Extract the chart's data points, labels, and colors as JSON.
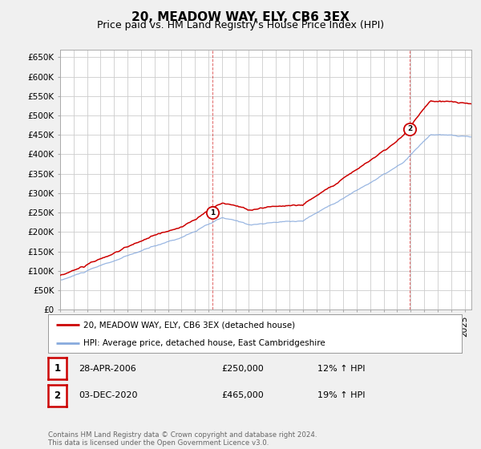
{
  "title": "20, MEADOW WAY, ELY, CB6 3EX",
  "subtitle": "Price paid vs. HM Land Registry's House Price Index (HPI)",
  "ylabel_ticks": [
    "£0",
    "£50K",
    "£100K",
    "£150K",
    "£200K",
    "£250K",
    "£300K",
    "£350K",
    "£400K",
    "£450K",
    "£500K",
    "£550K",
    "£600K",
    "£650K"
  ],
  "ytick_vals": [
    0,
    50000,
    100000,
    150000,
    200000,
    250000,
    300000,
    350000,
    400000,
    450000,
    500000,
    550000,
    600000,
    650000
  ],
  "ylim": [
    0,
    670000
  ],
  "xlim_start": 1995.0,
  "xlim_end": 2025.5,
  "marker1_x": 2006.32,
  "marker1_y": 250000,
  "marker1_label": "1",
  "marker2_x": 2020.92,
  "marker2_y": 465000,
  "marker2_label": "2",
  "legend_line1_color": "#cc0000",
  "legend_line1_label": "20, MEADOW WAY, ELY, CB6 3EX (detached house)",
  "legend_line2_color": "#88aadd",
  "legend_line2_label": "HPI: Average price, detached house, East Cambridgeshire",
  "annotation1_num": "1",
  "annotation1_date": "28-APR-2006",
  "annotation1_price": "£250,000",
  "annotation1_hpi": "12% ↑ HPI",
  "annotation2_num": "2",
  "annotation2_date": "03-DEC-2020",
  "annotation2_price": "£465,000",
  "annotation2_hpi": "19% ↑ HPI",
  "footer": "Contains HM Land Registry data © Crown copyright and database right 2024.\nThis data is licensed under the Open Government Licence v3.0.",
  "bg_color": "#f0f0f0",
  "plot_bg": "#ffffff",
  "grid_color": "#cccccc",
  "title_fontsize": 11,
  "subtitle_fontsize": 9,
  "tick_fontsize": 7.5,
  "legend_fontsize": 7.5,
  "ann_fontsize": 8
}
